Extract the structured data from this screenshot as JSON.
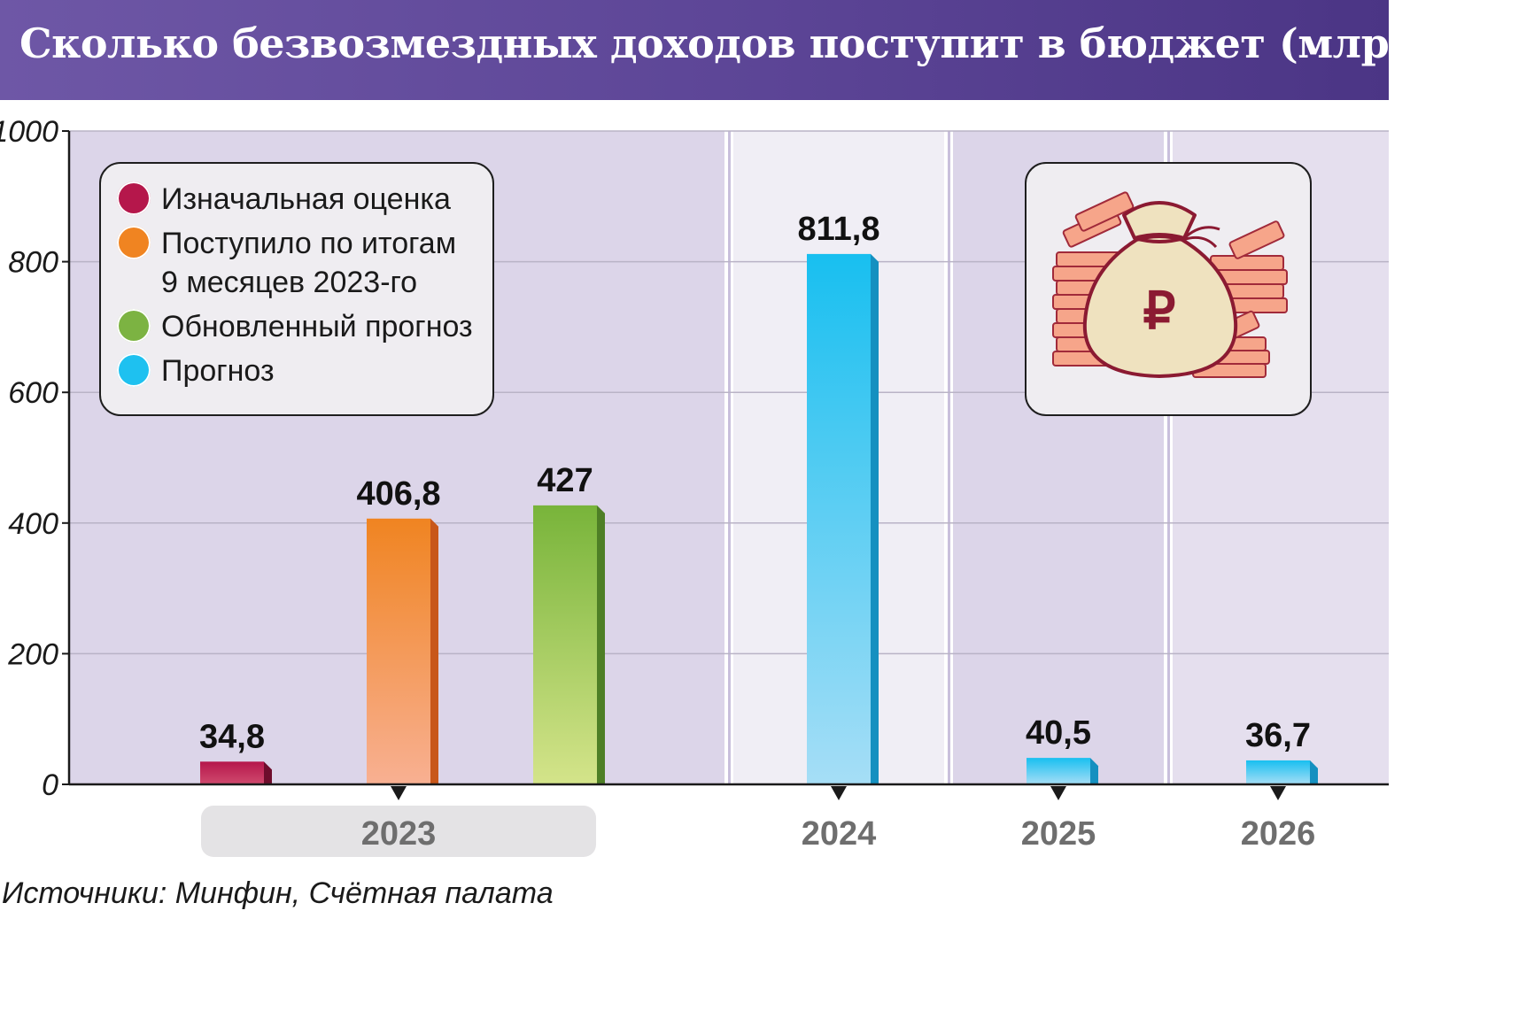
{
  "title": "Сколько безвозмездных доходов поступит в бюджет (млрд руб.)",
  "source": "Источники: Минфин, Счётная палата",
  "legend": [
    {
      "label": "Изначальная оценка",
      "color": "#b5174b"
    },
    {
      "label": "Поступило по итогам\n9 месяцев 2023-го",
      "color": "#f08421"
    },
    {
      "label": "Обновленный прогноз",
      "color": "#7cb342"
    },
    {
      "label": "Прогноз",
      "color": "#1ec1f0"
    }
  ],
  "icons": {
    "money_bag": "money-bag-icon",
    "currency_symbol": "₽"
  },
  "chart_data": {
    "type": "bar",
    "title": "Сколько безвозмездных доходов поступит в бюджет (млрд руб.)",
    "ylim": [
      0,
      1000
    ],
    "yticks": [
      "0",
      "200",
      "400",
      "600",
      "800",
      "1000"
    ],
    "grid": true,
    "legend_position": "top-left",
    "categories": [
      "2023",
      "2024",
      "2025",
      "2026"
    ],
    "series": [
      {
        "name": "Изначальная оценка",
        "color": "#b5174b",
        "points": [
          {
            "category": "2023",
            "value": 34.8,
            "label": "34,8"
          }
        ]
      },
      {
        "name": "Поступило по итогам 9 месяцев 2023-го",
        "color": "#f08421",
        "points": [
          {
            "category": "2023",
            "value": 406.8,
            "label": "406,8"
          }
        ]
      },
      {
        "name": "Обновленный прогноз",
        "color": "#7cb342",
        "points": [
          {
            "category": "2023",
            "value": 427,
            "label": "427"
          }
        ]
      },
      {
        "name": "Прогноз",
        "color": "#1ec1f0",
        "points": [
          {
            "category": "2024",
            "value": 811.8,
            "label": "811,8"
          },
          {
            "category": "2025",
            "value": 40.5,
            "label": "40,5"
          },
          {
            "category": "2026",
            "value": 36.7,
            "label": "36,7"
          }
        ]
      }
    ]
  }
}
